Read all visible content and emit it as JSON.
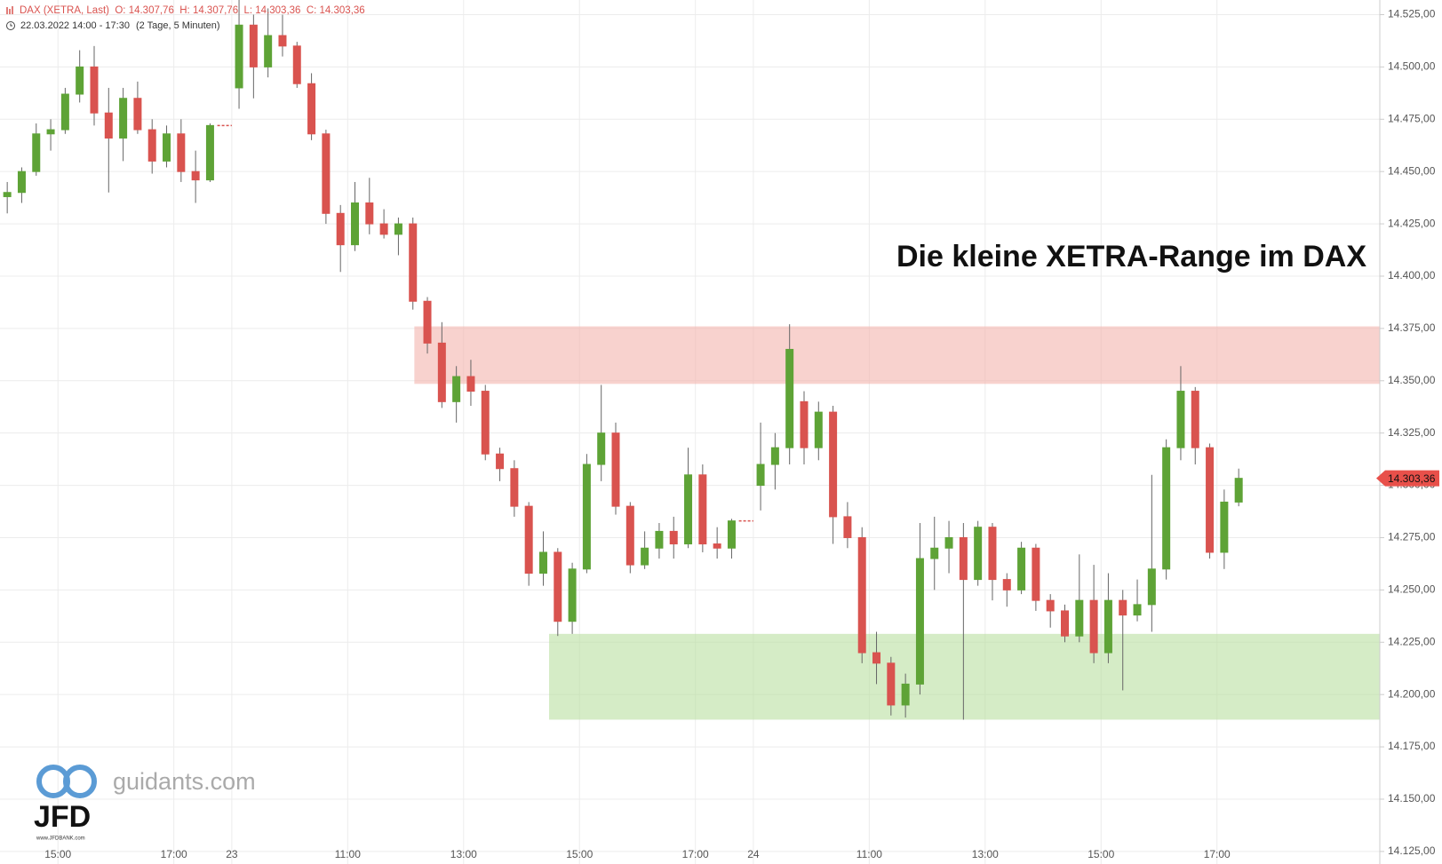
{
  "chart_data": {
    "type": "candlestick",
    "header": "DAX (XETRA, Last)  O: 14.307,76  H: 14.307,76  L: 14.303,36  C: 14.303,36",
    "period": "22.03.2022 14:00 - 17:30",
    "span": "(2 Tage, 5 Minuten)",
    "title": "Die kleine XETRA-Range im DAX",
    "watermark": {
      "site": "guidants.com",
      "brand": "JFD",
      "url": "www.JFDBANK.com"
    },
    "up_color": "#5ea336",
    "down_color": "#d9534f",
    "xlim": [
      0,
      95.24
    ],
    "xticks": [
      {
        "value": 4,
        "label": "15:00"
      },
      {
        "value": 12,
        "label": "17:00"
      },
      {
        "value": 16,
        "label": "23"
      },
      {
        "value": 24,
        "label": "11:00"
      },
      {
        "value": 32,
        "label": "13:00"
      },
      {
        "value": 40,
        "label": "15:00"
      },
      {
        "value": 48,
        "label": "17:00"
      },
      {
        "value": 52,
        "label": "24"
      },
      {
        "value": 60,
        "label": "11:00"
      },
      {
        "value": 68,
        "label": "13:00"
      },
      {
        "value": 76,
        "label": "15:00"
      },
      {
        "value": 84,
        "label": "17:00"
      }
    ],
    "ylim": [
      14119,
      14532
    ],
    "yticks": [
      {
        "value": 14125,
        "label": "14.125,00"
      },
      {
        "value": 14150,
        "label": "14.150,00"
      },
      {
        "value": 14175,
        "label": "14.175,00"
      },
      {
        "value": 14200,
        "label": "14.200,00"
      },
      {
        "value": 14225,
        "label": "14.225,00"
      },
      {
        "value": 14250,
        "label": "14.250,00"
      },
      {
        "value": 14275,
        "label": "14.275,00"
      },
      {
        "value": 14300,
        "label": "14.300,00"
      },
      {
        "value": 14325,
        "label": "14.325,00"
      },
      {
        "value": 14350,
        "label": "14.350,00"
      },
      {
        "value": 14375,
        "label": "14.375,00"
      },
      {
        "value": 14400,
        "label": "14.400,00"
      },
      {
        "value": 14425,
        "label": "14.425,00"
      },
      {
        "value": 14450,
        "label": "14.450,00"
      },
      {
        "value": 14475,
        "label": "14.475,00"
      },
      {
        "value": 14500,
        "label": "14.500,00"
      },
      {
        "value": 14525,
        "label": "14.525,00"
      }
    ],
    "grid": true,
    "last_price": {
      "value": 14303.36,
      "label": "14.303,36"
    },
    "zones": [
      {
        "from": 28.6,
        "low": 14348.5,
        "high": 14376,
        "color": "#f4b4ad"
      },
      {
        "from": 37.9,
        "low": 14188,
        "high": 14229,
        "color": "#b9e0a0"
      }
    ],
    "open": [
      14438,
      14440,
      14450,
      14468,
      14470,
      14487,
      14500,
      14478,
      14466,
      14485,
      14470,
      14455,
      14468,
      14450,
      14446,
      14472,
      14490,
      14520,
      14500,
      14515,
      14510,
      14492,
      14468,
      14430,
      14415,
      14435,
      14425,
      14420,
      14425,
      14388,
      14368,
      14340,
      14352,
      14345,
      14315,
      14308,
      14290,
      14258,
      14268,
      14235,
      14260,
      14310,
      14325,
      14290,
      14262,
      14270,
      14278,
      14272,
      14305,
      14272,
      14270,
      14283,
      14300,
      14310,
      14318,
      14340,
      14318,
      14335,
      14285,
      14275,
      14220,
      14215,
      14195,
      14205,
      14265,
      14270,
      14275,
      14255,
      14280,
      14255,
      14250,
      14270,
      14245,
      14240,
      14228,
      14245,
      14220,
      14245,
      14238,
      14243,
      14260,
      14318,
      14345,
      14318,
      14268,
      14292
    ],
    "high": [
      14445,
      14452,
      14473,
      14475,
      14490,
      14508,
      14510,
      14490,
      14490,
      14493,
      14475,
      14472,
      14475,
      14460,
      14473,
      14472,
      14535,
      14525,
      14528,
      14525,
      14512,
      14497,
      14470,
      14434,
      14445,
      14447,
      14432,
      14428,
      14428,
      14390,
      14378,
      14357,
      14360,
      14348,
      14318,
      14312,
      14292,
      14278,
      14270,
      14263,
      14315,
      14348,
      14330,
      14292,
      14278,
      14282,
      14285,
      14318,
      14310,
      14280,
      14284,
      14283,
      14330,
      14325,
      14377,
      14345,
      14340,
      14338,
      14292,
      14280,
      14230,
      14218,
      14210,
      14282,
      14285,
      14283,
      14282,
      14283,
      14282,
      14258,
      14273,
      14272,
      14248,
      14243,
      14267,
      14262,
      14258,
      14250,
      14255,
      14305,
      14322,
      14357,
      14347,
      14320,
      14298,
      14308
    ],
    "low": [
      14430,
      14435,
      14448,
      14460,
      14468,
      14483,
      14472,
      14440,
      14455,
      14468,
      14449,
      14452,
      14445,
      14435,
      14445,
      14472,
      14480,
      14485,
      14495,
      14505,
      14490,
      14465,
      14425,
      14402,
      14412,
      14420,
      14418,
      14410,
      14384,
      14363,
      14337,
      14330,
      14338,
      14312,
      14302,
      14285,
      14252,
      14252,
      14228,
      14229,
      14258,
      14302,
      14286,
      14258,
      14260,
      14265,
      14265,
      14270,
      14268,
      14265,
      14265,
      14283,
      14288,
      14298,
      14310,
      14310,
      14312,
      14272,
      14270,
      14215,
      14205,
      14190,
      14189,
      14200,
      14250,
      14258,
      14188,
      14252,
      14245,
      14242,
      14248,
      14240,
      14232,
      14225,
      14225,
      14215,
      14215,
      14202,
      14235,
      14230,
      14255,
      14312,
      14310,
      14265,
      14260,
      14290
    ],
    "close": [
      14440,
      14450,
      14468,
      14470,
      14487,
      14500,
      14478,
      14466,
      14485,
      14470,
      14455,
      14468,
      14450,
      14446,
      14472,
      14472,
      14520,
      14500,
      14515,
      14510,
      14492,
      14468,
      14430,
      14415,
      14435,
      14425,
      14420,
      14425,
      14388,
      14368,
      14340,
      14352,
      14345,
      14315,
      14308,
      14290,
      14258,
      14268,
      14235,
      14260,
      14310,
      14325,
      14290,
      14262,
      14270,
      14278,
      14272,
      14305,
      14272,
      14270,
      14283,
      14283,
      14310,
      14318,
      14365,
      14318,
      14335,
      14285,
      14275,
      14220,
      14215,
      14195,
      14205,
      14265,
      14270,
      14275,
      14255,
      14280,
      14255,
      14250,
      14270,
      14245,
      14240,
      14228,
      14245,
      14220,
      14245,
      14238,
      14243,
      14260,
      14318,
      14345,
      14318,
      14268,
      14292,
      14303.36
    ]
  }
}
